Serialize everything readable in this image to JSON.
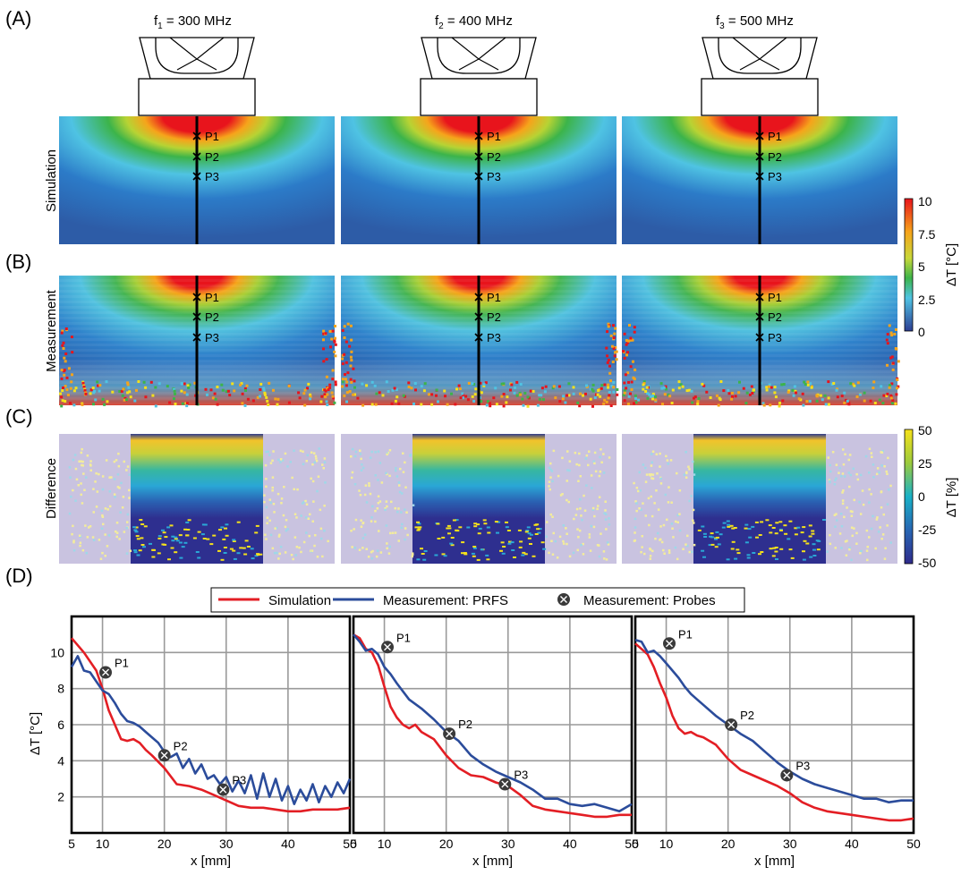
{
  "panel_labels": [
    "(A)",
    "(B)",
    "(C)",
    "(D)"
  ],
  "frequencies": [
    {
      "prefix": "f",
      "sub": "1",
      "text": " = 300 MHz"
    },
    {
      "prefix": "f",
      "sub": "2",
      "text": " = 400 MHz"
    },
    {
      "prefix": "f",
      "sub": "3",
      "text": " = 500 MHz"
    }
  ],
  "row_labels": [
    "Simulation",
    "Measurement",
    "Difference"
  ],
  "probe_labels": [
    "P1",
    "P2",
    "P3"
  ],
  "colorbar_temp": {
    "label": "ΔT [°C]",
    "ticks": [
      "10",
      "7.5",
      "5",
      "2.5",
      "0"
    ]
  },
  "colorbar_diff": {
    "label": "ΔT [%]",
    "ticks": [
      "50",
      "25",
      "0",
      "-25",
      "-50"
    ]
  },
  "legend": {
    "simulation": "Simulation",
    "prfs": "Measurement: PRFS",
    "probes": "Measurement: Probes"
  },
  "colors": {
    "simulation": "#e31e24",
    "prfs": "#2b4c9b",
    "grid": "#9a9a9a"
  },
  "chart_data": [
    {
      "type": "line",
      "xlabel": "x [mm]",
      "ylabel": "ΔT [°C]",
      "xlim": [
        5,
        50
      ],
      "ylim": [
        0,
        12
      ],
      "xticks": [
        "5",
        "10",
        "20",
        "30",
        "40",
        "50"
      ],
      "yticks": [
        "2",
        "4",
        "6",
        "8",
        "10"
      ],
      "series": [
        {
          "name": "Simulation",
          "x": [
            5,
            7,
            9,
            10,
            11,
            12,
            13,
            14,
            15,
            16,
            17,
            18,
            20,
            22,
            24,
            26,
            28,
            30,
            32,
            34,
            36,
            38,
            40,
            42,
            44,
            46,
            48,
            50
          ],
          "y": [
            10.8,
            10,
            9,
            8,
            6.8,
            6,
            5.2,
            5.1,
            5.2,
            5,
            4.6,
            4.3,
            3.6,
            2.7,
            2.6,
            2.4,
            2.1,
            1.8,
            1.5,
            1.4,
            1.4,
            1.3,
            1.2,
            1.2,
            1.3,
            1.3,
            1.3,
            1.4
          ]
        },
        {
          "name": "Measurement: PRFS",
          "x": [
            5,
            6,
            7,
            8,
            9,
            10,
            11,
            12,
            13,
            14,
            15,
            16,
            17,
            18,
            19,
            20,
            21,
            22,
            23,
            24,
            25,
            26,
            27,
            28,
            29,
            30,
            31,
            32,
            33,
            34,
            35,
            36,
            37,
            38,
            39,
            40,
            41,
            42,
            43,
            44,
            45,
            46,
            47,
            48,
            49,
            50
          ],
          "y": [
            9.2,
            9.8,
            9,
            8.9,
            8.4,
            7.9,
            7.7,
            7.2,
            6.6,
            6.2,
            6.1,
            5.9,
            5.6,
            5.3,
            5,
            4.5,
            4.2,
            4.4,
            3.6,
            4.1,
            3.3,
            3.8,
            3,
            3.2,
            2.7,
            3.1,
            2.3,
            2.9,
            2.2,
            3.2,
            1.9,
            3.3,
            2,
            3,
            1.8,
            2.6,
            1.6,
            2.4,
            1.8,
            2.7,
            1.7,
            2.6,
            2,
            2.8,
            2.2,
            3
          ]
        },
        {
          "name": "Measurement: Probes",
          "labels": [
            "P1",
            "P2",
            "P3"
          ],
          "x": [
            10.5,
            20,
            29.5
          ],
          "y": [
            8.9,
            4.3,
            2.4
          ]
        }
      ]
    },
    {
      "type": "line",
      "xlabel": "x [mm]",
      "ylabel": "",
      "xlim": [
        5,
        50
      ],
      "ylim": [
        0,
        12
      ],
      "xticks": [
        "5",
        "10",
        "20",
        "30",
        "40",
        "50"
      ],
      "yticks": [],
      "series": [
        {
          "name": "Simulation",
          "x": [
            5,
            6,
            7,
            8,
            9,
            10,
            11,
            12,
            13,
            14,
            15,
            16,
            18,
            20,
            22,
            24,
            26,
            28,
            30,
            32,
            34,
            36,
            38,
            40,
            42,
            44,
            46,
            48,
            50
          ],
          "y": [
            11,
            10.8,
            10.2,
            10,
            9.3,
            8.1,
            7,
            6.4,
            6,
            5.8,
            6,
            5.6,
            5.2,
            4.3,
            3.6,
            3.2,
            3.1,
            2.8,
            2.6,
            2.1,
            1.5,
            1.3,
            1.2,
            1.1,
            1,
            0.9,
            0.9,
            1,
            1
          ]
        },
        {
          "name": "Measurement: PRFS",
          "x": [
            5,
            6,
            7,
            8,
            9,
            10,
            11,
            12,
            14,
            16,
            18,
            20,
            22,
            24,
            26,
            28,
            30,
            32,
            34,
            36,
            38,
            40,
            42,
            44,
            46,
            48,
            50
          ],
          "y": [
            11,
            10.6,
            10.1,
            10.2,
            9.9,
            9.2,
            8.8,
            8.3,
            7.4,
            6.9,
            6.3,
            5.6,
            5.1,
            4.3,
            3.8,
            3.4,
            3.1,
            2.8,
            2.4,
            1.9,
            1.9,
            1.6,
            1.5,
            1.6,
            1.4,
            1.2,
            1.6
          ]
        },
        {
          "name": "Measurement: Probes",
          "labels": [
            "P1",
            "P2",
            "P3"
          ],
          "x": [
            10.5,
            20.5,
            29.5
          ],
          "y": [
            10.3,
            5.5,
            2.7
          ]
        }
      ]
    },
    {
      "type": "line",
      "xlabel": "x [mm]",
      "ylabel": "",
      "xlim": [
        5,
        50
      ],
      "ylim": [
        0,
        12
      ],
      "xticks": [
        "5",
        "10",
        "20",
        "30",
        "40",
        "50"
      ],
      "yticks": [],
      "series": [
        {
          "name": "Simulation",
          "x": [
            5,
            6,
            7,
            8,
            9,
            10,
            11,
            12,
            13,
            14,
            15,
            16,
            18,
            20,
            22,
            24,
            26,
            28,
            30,
            32,
            34,
            36,
            38,
            40,
            42,
            44,
            46,
            48,
            50
          ],
          "y": [
            10.5,
            10.2,
            9.9,
            9.2,
            8.3,
            7.5,
            6.5,
            5.8,
            5.5,
            5.6,
            5.4,
            5.3,
            4.9,
            4.1,
            3.5,
            3.2,
            2.9,
            2.6,
            2.2,
            1.7,
            1.4,
            1.2,
            1.1,
            1.0,
            0.9,
            0.8,
            0.7,
            0.7,
            0.8
          ]
        },
        {
          "name": "Measurement: PRFS",
          "x": [
            5,
            6,
            7,
            8,
            9,
            10,
            11,
            12,
            13,
            14,
            15,
            16,
            18,
            20,
            22,
            24,
            26,
            28,
            30,
            32,
            34,
            36,
            38,
            40,
            42,
            44,
            46,
            48,
            50
          ],
          "y": [
            10.7,
            10.6,
            10,
            10.1,
            9.8,
            9.4,
            9,
            8.6,
            8.1,
            7.7,
            7.4,
            7.1,
            6.5,
            6,
            5.5,
            5.1,
            4.5,
            3.9,
            3.4,
            3,
            2.7,
            2.5,
            2.3,
            2.1,
            1.9,
            1.9,
            1.7,
            1.8,
            1.8
          ]
        },
        {
          "name": "Measurement: Probes",
          "labels": [
            "P1",
            "P2",
            "P3"
          ],
          "x": [
            10.5,
            20.5,
            29.5
          ],
          "y": [
            10.5,
            6.0,
            3.2
          ]
        }
      ]
    }
  ]
}
